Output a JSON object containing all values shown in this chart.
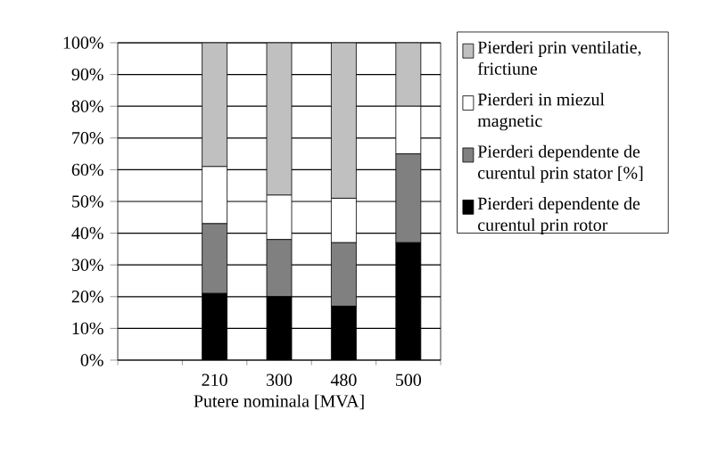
{
  "chart_data": {
    "type": "bar",
    "stacked": true,
    "xlabel": "Putere nominala [MVA]",
    "categories": [
      null,
      "210",
      "300",
      "480",
      "500"
    ],
    "series": [
      {
        "name": "Pierderi dependente de curentul prin rotor",
        "color": "#000000",
        "values": [
          null,
          21,
          20,
          17,
          37
        ]
      },
      {
        "name": "Pierderi dependente de curentul prin stator [%]",
        "color": "#808080",
        "values": [
          null,
          22,
          18,
          20,
          28
        ]
      },
      {
        "name": "Pierderi in miezul magnetic",
        "color": "#ffffff",
        "values": [
          null,
          18,
          14,
          14,
          15
        ]
      },
      {
        "name": "Pierderi prin ventilatie, frictiune",
        "color": "#c0c0c0",
        "values": [
          null,
          39,
          48,
          49,
          20
        ]
      }
    ],
    "ylim": [
      0,
      100
    ],
    "yticks": [
      {
        "value": 0,
        "label": "0%"
      },
      {
        "value": 10,
        "label": "10%"
      },
      {
        "value": 20,
        "label": "20%"
      },
      {
        "value": 30,
        "label": "30%"
      },
      {
        "value": 40,
        "label": "40%"
      },
      {
        "value": 50,
        "label": "50%"
      },
      {
        "value": 60,
        "label": "60%"
      },
      {
        "value": 70,
        "label": "70%"
      },
      {
        "value": 80,
        "label": "80%"
      },
      {
        "value": 90,
        "label": "90%"
      },
      {
        "value": 100,
        "label": "100%"
      }
    ],
    "grid": "y",
    "legend": "right"
  }
}
